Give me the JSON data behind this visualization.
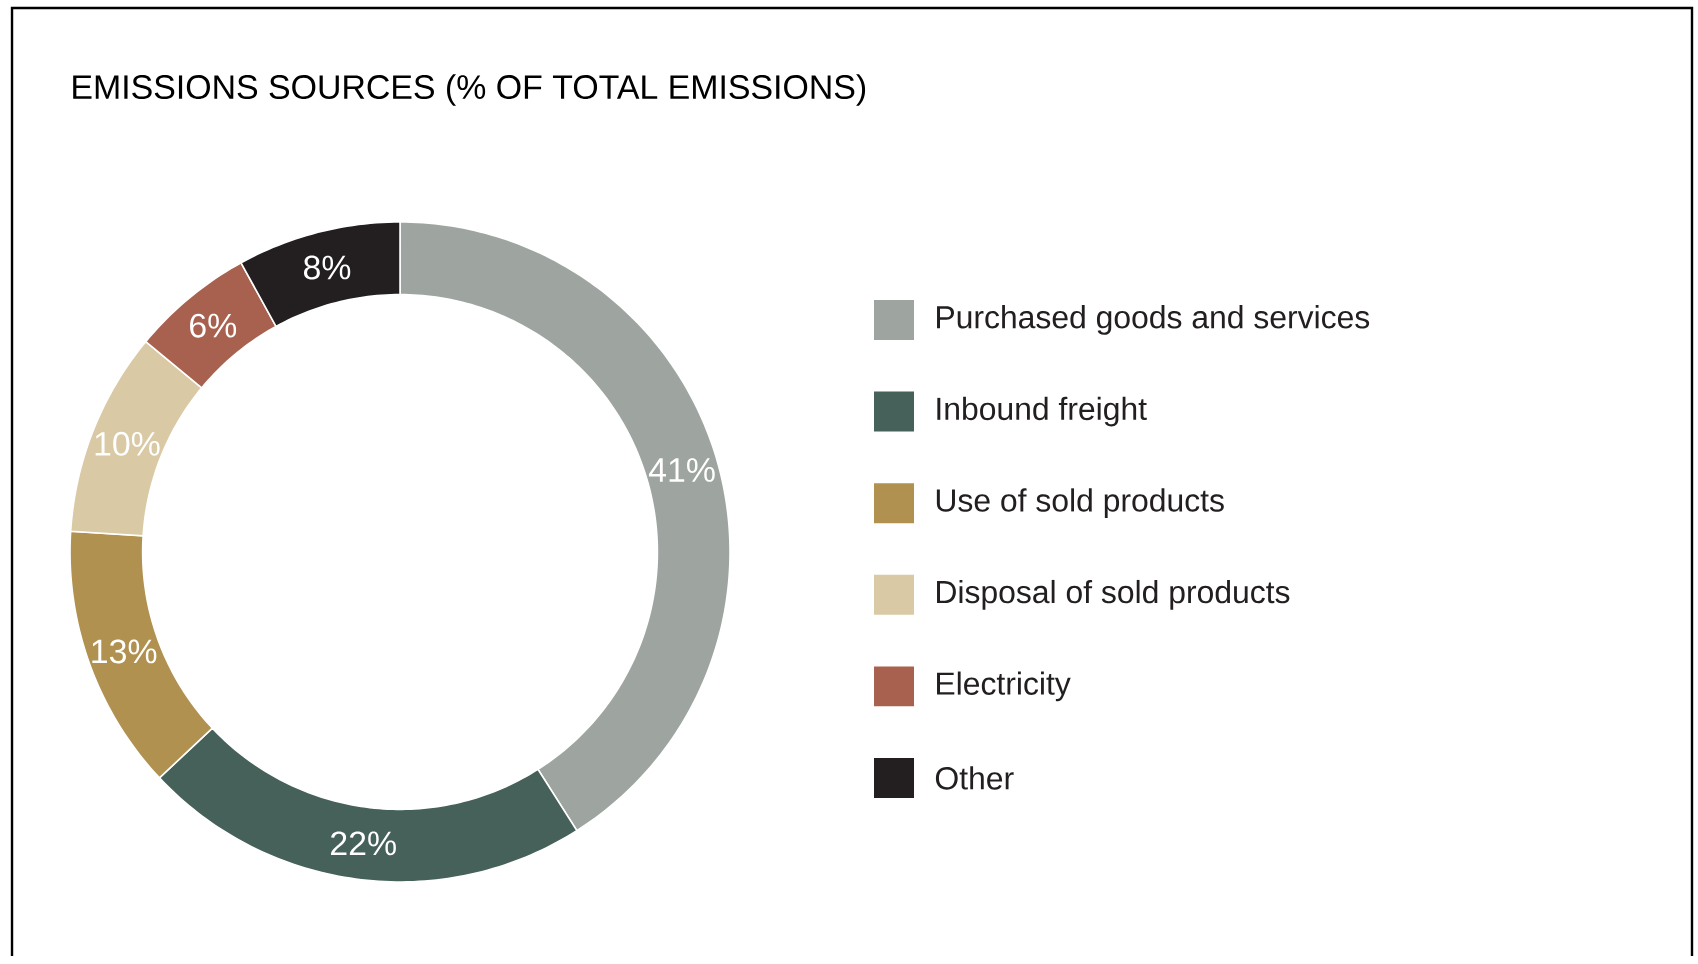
{
  "chart_data": {
    "type": "donut",
    "title": "EMISSIONS SOURCES (% OF TOTAL EMISSIONS)",
    "categories": [
      "Purchased goods and services",
      "Inbound freight",
      "Use of sold products",
      "Disposal of sold products",
      "Electricity",
      "Other"
    ],
    "values": [
      41,
      22,
      13,
      10,
      6,
      8
    ],
    "value_labels": [
      "41%",
      "22%",
      "13%",
      "10%",
      "6%",
      "8%"
    ],
    "colors": [
      "#9ea5a0",
      "#46615a",
      "#b0914f",
      "#d9c9a5",
      "#a9614f",
      "#231f20"
    ],
    "legend": "right"
  }
}
